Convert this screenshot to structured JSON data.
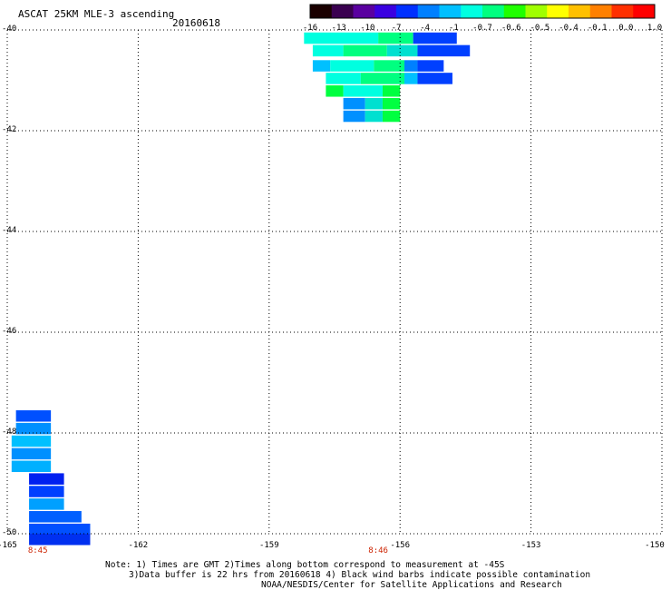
{
  "header": {
    "title": "ASCAT 25KM MLE-3 ascending",
    "date": "20160618"
  },
  "colorbar": {
    "labels": [
      "-16",
      "-13",
      "-10",
      "-7",
      "-4",
      "-1",
      "-0.7",
      "-0.6",
      "-0.5",
      "-0.4",
      "-0.1",
      "0.0",
      "1.0"
    ],
    "colors": [
      "#1a0000",
      "#3a0050",
      "#5a00a0",
      "#3a00e0",
      "#0030ff",
      "#0080ff",
      "#00c0ff",
      "#00ffe0",
      "#00ff80",
      "#20ff00",
      "#a0ff00",
      "#ffff00",
      "#ffc000",
      "#ff8000",
      "#ff3000",
      "#ff0000"
    ]
  },
  "axes": {
    "lat_labels": [
      "-40",
      "-42",
      "-44",
      "-46",
      "-48",
      "-50"
    ],
    "lon_labels": [
      "-165",
      "-162",
      "-159",
      "-156",
      "-153",
      "-150"
    ],
    "lat_range": [
      -50,
      -40
    ],
    "lon_range": [
      -165,
      -150
    ],
    "grid": "dotted"
  },
  "time_labels": [
    {
      "text": "8:45",
      "lon": -164.3
    },
    {
      "text": "8:46",
      "lon": -156.5
    }
  ],
  "swaths": {
    "north": [
      {
        "lat": -40.05,
        "lon0": -158.2,
        "lon1": -156.5,
        "color": "#00ffe0"
      },
      {
        "lat": -40.05,
        "lon0": -156.5,
        "lon1": -155.7,
        "color": "#00ff80"
      },
      {
        "lat": -40.05,
        "lon0": -155.7,
        "lon1": -154.7,
        "color": "#0040ff"
      },
      {
        "lat": -40.3,
        "lon0": -158.0,
        "lon1": -157.3,
        "color": "#00ffe0"
      },
      {
        "lat": -40.3,
        "lon0": -157.3,
        "lon1": -156.3,
        "color": "#00ff80"
      },
      {
        "lat": -40.3,
        "lon0": -156.3,
        "lon1": -155.6,
        "color": "#00e0d0"
      },
      {
        "lat": -40.3,
        "lon0": -155.6,
        "lon1": -154.4,
        "color": "#0040ff"
      },
      {
        "lat": -40.6,
        "lon0": -158.0,
        "lon1": -157.6,
        "color": "#00c0ff"
      },
      {
        "lat": -40.6,
        "lon0": -157.6,
        "lon1": -156.6,
        "color": "#00ffe0"
      },
      {
        "lat": -40.6,
        "lon0": -156.6,
        "lon1": -155.9,
        "color": "#00ff80"
      },
      {
        "lat": -40.6,
        "lon0": -155.9,
        "lon1": -155.6,
        "color": "#0080ff"
      },
      {
        "lat": -40.6,
        "lon0": -155.6,
        "lon1": -155.0,
        "color": "#0040ff"
      },
      {
        "lat": -40.85,
        "lon0": -157.7,
        "lon1": -156.9,
        "color": "#00ffe0"
      },
      {
        "lat": -40.85,
        "lon0": -156.9,
        "lon1": -155.9,
        "color": "#00ff80"
      },
      {
        "lat": -40.85,
        "lon0": -155.9,
        "lon1": -155.6,
        "color": "#00c0ff"
      },
      {
        "lat": -40.85,
        "lon0": -155.6,
        "lon1": -154.8,
        "color": "#0040ff"
      },
      {
        "lat": -41.1,
        "lon0": -157.7,
        "lon1": -157.3,
        "color": "#00ff40"
      },
      {
        "lat": -41.1,
        "lon0": -157.3,
        "lon1": -156.4,
        "color": "#00ffe0"
      },
      {
        "lat": -41.1,
        "lon0": -156.4,
        "lon1": -156.0,
        "color": "#00ff40"
      },
      {
        "lat": -41.35,
        "lon0": -157.3,
        "lon1": -156.8,
        "color": "#0090ff"
      },
      {
        "lat": -41.35,
        "lon0": -156.8,
        "lon1": -156.4,
        "color": "#00e0d0"
      },
      {
        "lat": -41.35,
        "lon0": -156.4,
        "lon1": -156.0,
        "color": "#00ff40"
      },
      {
        "lat": -41.6,
        "lon0": -157.3,
        "lon1": -156.8,
        "color": "#0090ff"
      },
      {
        "lat": -41.6,
        "lon0": -156.8,
        "lon1": -156.4,
        "color": "#00e0d0"
      },
      {
        "lat": -41.6,
        "lon0": -156.4,
        "lon1": -156.0,
        "color": "#00ff40"
      }
    ],
    "south": [
      {
        "lat": -47.55,
        "lon0": -164.8,
        "lon1": -164.0,
        "color": "#0050ff"
      },
      {
        "lat": -47.8,
        "lon0": -164.8,
        "lon1": -164.0,
        "color": "#0090ff"
      },
      {
        "lat": -48.05,
        "lon0": -164.9,
        "lon1": -164.0,
        "color": "#00c0ff"
      },
      {
        "lat": -48.3,
        "lon0": -164.9,
        "lon1": -164.0,
        "color": "#0090ff"
      },
      {
        "lat": -48.55,
        "lon0": -164.9,
        "lon1": -164.0,
        "color": "#00b0ff"
      },
      {
        "lat": -48.8,
        "lon0": -164.5,
        "lon1": -163.7,
        "color": "#0020f0"
      },
      {
        "lat": -49.05,
        "lon0": -164.5,
        "lon1": -163.7,
        "color": "#0040ff"
      },
      {
        "lat": -49.3,
        "lon0": -164.5,
        "lon1": -163.7,
        "color": "#00a0ff"
      },
      {
        "lat": -49.55,
        "lon0": -164.5,
        "lon1": -163.3,
        "color": "#0060ff"
      },
      {
        "lat": -49.8,
        "lon0": -164.5,
        "lon1": -163.1,
        "color": "#0050ff"
      },
      {
        "lat": -50.0,
        "lon0": -164.5,
        "lon1": -163.1,
        "color": "#0030f0"
      }
    ]
  },
  "notes": {
    "line1": "Note: 1) Times are GMT 2)Times along bottom correspond to measurement at -45S",
    "line2": "3)Data buffer is 22 hrs from 20160618 4) Black wind barbs indicate possible contamination",
    "line3": "NOAA/NESDIS/Center for Satellite Applications and Research"
  }
}
